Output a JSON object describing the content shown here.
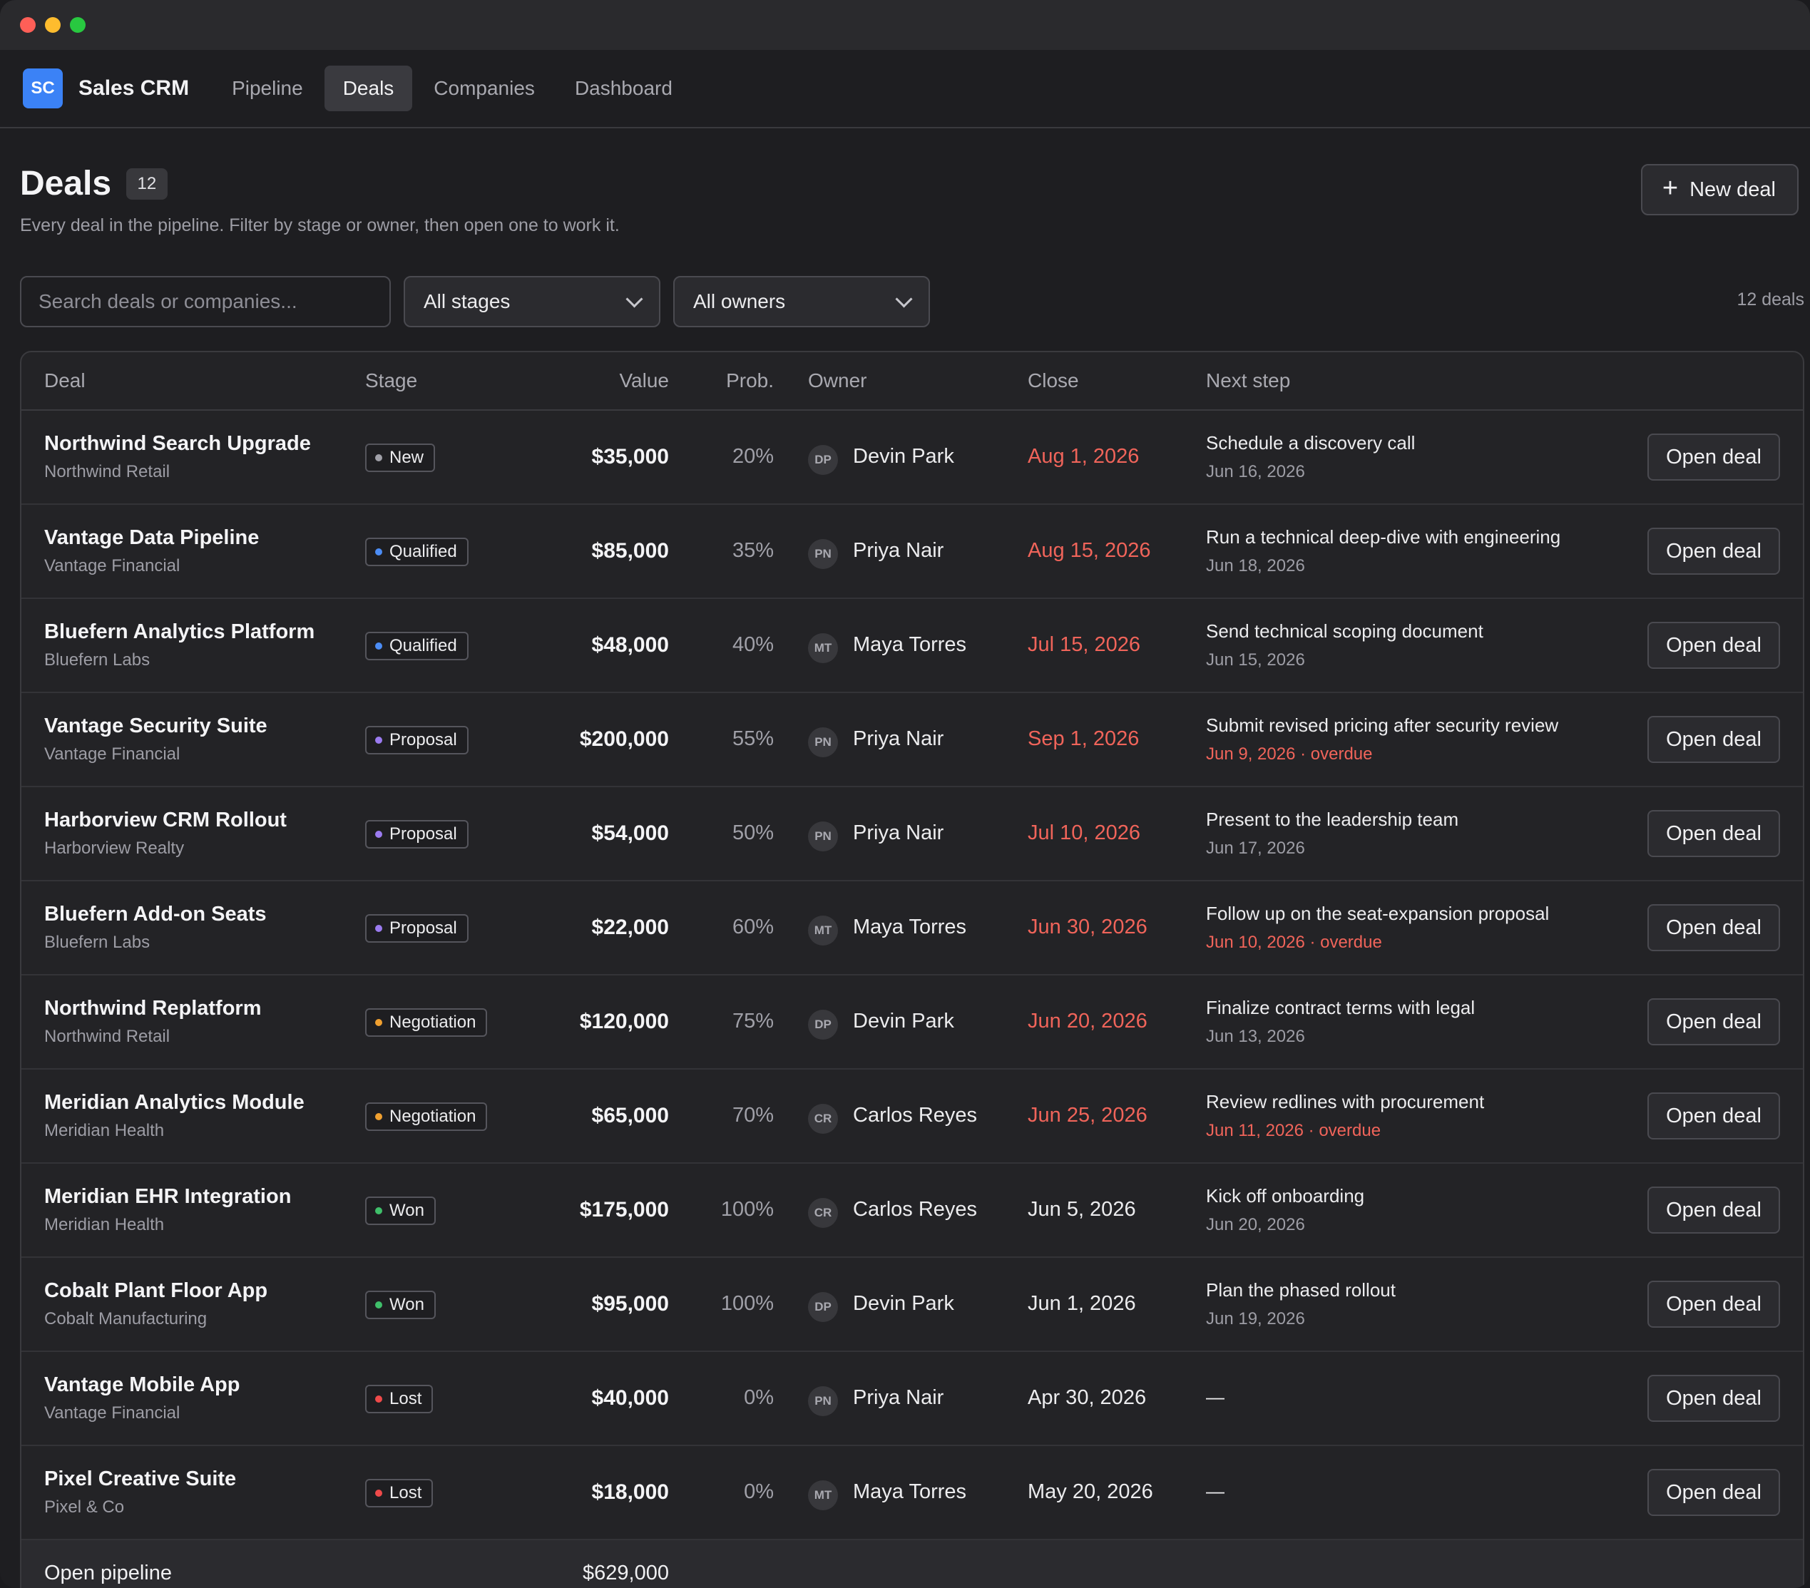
{
  "app": {
    "logo_text": "SC",
    "name": "Sales CRM",
    "tabs": [
      {
        "label": "Pipeline",
        "active": false
      },
      {
        "label": "Deals",
        "active": true
      },
      {
        "label": "Companies",
        "active": false
      },
      {
        "label": "Dashboard",
        "active": false
      }
    ]
  },
  "page": {
    "title": "Deals",
    "count": "12",
    "subtitle": "Every deal in the pipeline. Filter by stage or owner, then open one to work it.",
    "new_button": "New deal"
  },
  "filters": {
    "search_placeholder": "Search deals or companies...",
    "stage": "All stages",
    "owner": "All owners",
    "result_count": "12 deals"
  },
  "table": {
    "headers": {
      "deal": "Deal",
      "stage": "Stage",
      "value": "Value",
      "prob": "Prob.",
      "owner": "Owner",
      "close": "Close",
      "next": "Next step"
    },
    "stage_colors": {
      "New": "#a0a0a8",
      "Qualified": "#4c8df6",
      "Proposal": "#9b7bf0",
      "Negotiation": "#f0a030",
      "Won": "#3fbf6a",
      "Lost": "#ef4a4a"
    },
    "rows": [
      {
        "deal": "Northwind Search Upgrade",
        "company": "Northwind Retail",
        "stage": "New",
        "value": "$35,000",
        "prob": "20%",
        "initials": "DP",
        "owner": "Devin Park",
        "close": "Aug 1, 2026",
        "close_late": true,
        "next": "Schedule a discovery call",
        "next_date": "Jun 16, 2026",
        "overdue": false,
        "action": "Open deal"
      },
      {
        "deal": "Vantage Data Pipeline",
        "company": "Vantage Financial",
        "stage": "Qualified",
        "value": "$85,000",
        "prob": "35%",
        "initials": "PN",
        "owner": "Priya Nair",
        "close": "Aug 15, 2026",
        "close_late": true,
        "next": "Run a technical deep-dive with engineering",
        "next_date": "Jun 18, 2026",
        "overdue": false,
        "action": "Open deal"
      },
      {
        "deal": "Bluefern Analytics Platform",
        "company": "Bluefern Labs",
        "stage": "Qualified",
        "value": "$48,000",
        "prob": "40%",
        "initials": "MT",
        "owner": "Maya Torres",
        "close": "Jul 15, 2026",
        "close_late": true,
        "next": "Send technical scoping document",
        "next_date": "Jun 15, 2026",
        "overdue": false,
        "action": "Open deal"
      },
      {
        "deal": "Vantage Security Suite",
        "company": "Vantage Financial",
        "stage": "Proposal",
        "value": "$200,000",
        "prob": "55%",
        "initials": "PN",
        "owner": "Priya Nair",
        "close": "Sep 1, 2026",
        "close_late": true,
        "next": "Submit revised pricing after security review",
        "next_date": "Jun 9, 2026 · overdue",
        "overdue": true,
        "action": "Open deal"
      },
      {
        "deal": "Harborview CRM Rollout",
        "company": "Harborview Realty",
        "stage": "Proposal",
        "value": "$54,000",
        "prob": "50%",
        "initials": "PN",
        "owner": "Priya Nair",
        "close": "Jul 10, 2026",
        "close_late": true,
        "next": "Present to the leadership team",
        "next_date": "Jun 17, 2026",
        "overdue": false,
        "action": "Open deal"
      },
      {
        "deal": "Bluefern Add-on Seats",
        "company": "Bluefern Labs",
        "stage": "Proposal",
        "value": "$22,000",
        "prob": "60%",
        "initials": "MT",
        "owner": "Maya Torres",
        "close": "Jun 30, 2026",
        "close_late": true,
        "next": "Follow up on the seat-expansion proposal",
        "next_date": "Jun 10, 2026 · overdue",
        "overdue": true,
        "action": "Open deal"
      },
      {
        "deal": "Northwind Replatform",
        "company": "Northwind Retail",
        "stage": "Negotiation",
        "value": "$120,000",
        "prob": "75%",
        "initials": "DP",
        "owner": "Devin Park",
        "close": "Jun 20, 2026",
        "close_late": true,
        "next": "Finalize contract terms with legal",
        "next_date": "Jun 13, 2026",
        "overdue": false,
        "action": "Open deal"
      },
      {
        "deal": "Meridian Analytics Module",
        "company": "Meridian Health",
        "stage": "Negotiation",
        "value": "$65,000",
        "prob": "70%",
        "initials": "CR",
        "owner": "Carlos Reyes",
        "close": "Jun 25, 2026",
        "close_late": true,
        "next": "Review redlines with procurement",
        "next_date": "Jun 11, 2026 · overdue",
        "overdue": true,
        "action": "Open deal"
      },
      {
        "deal": "Meridian EHR Integration",
        "company": "Meridian Health",
        "stage": "Won",
        "value": "$175,000",
        "prob": "100%",
        "initials": "CR",
        "owner": "Carlos Reyes",
        "close": "Jun 5, 2026",
        "close_late": false,
        "next": "Kick off onboarding",
        "next_date": "Jun 20, 2026",
        "overdue": false,
        "action": "Open deal"
      },
      {
        "deal": "Cobalt Plant Floor App",
        "company": "Cobalt Manufacturing",
        "stage": "Won",
        "value": "$95,000",
        "prob": "100%",
        "initials": "DP",
        "owner": "Devin Park",
        "close": "Jun 1, 2026",
        "close_late": false,
        "next": "Plan the phased rollout",
        "next_date": "Jun 19, 2026",
        "overdue": false,
        "action": "Open deal"
      },
      {
        "deal": "Vantage Mobile App",
        "company": "Vantage Financial",
        "stage": "Lost",
        "value": "$40,000",
        "prob": "0%",
        "initials": "PN",
        "owner": "Priya Nair",
        "close": "Apr 30, 2026",
        "close_late": false,
        "next": "—",
        "next_date": "",
        "overdue": false,
        "action": "Open deal"
      },
      {
        "deal": "Pixel Creative Suite",
        "company": "Pixel & Co",
        "stage": "Lost",
        "value": "$18,000",
        "prob": "0%",
        "initials": "MT",
        "owner": "Maya Torres",
        "close": "May 20, 2026",
        "close_late": false,
        "next": "—",
        "next_date": "",
        "overdue": false,
        "action": "Open deal"
      }
    ],
    "footer_label": "Open pipeline",
    "footer_value": "$629,000"
  }
}
